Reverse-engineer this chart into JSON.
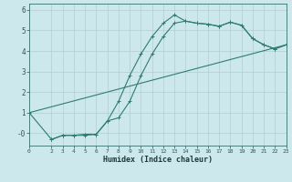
{
  "xlabel": "Humidex (Indice chaleur)",
  "bg_color": "#cce8ec",
  "grid_color": "#b0cdd0",
  "line_color": "#2d7d70",
  "xlim": [
    0,
    23
  ],
  "ylim": [
    -0.6,
    6.3
  ],
  "xticks": [
    0,
    2,
    3,
    4,
    5,
    6,
    7,
    8,
    9,
    10,
    11,
    12,
    13,
    14,
    15,
    16,
    17,
    18,
    19,
    20,
    21,
    22,
    23
  ],
  "yticks": [
    0,
    1,
    2,
    3,
    4,
    5,
    6
  ],
  "ytick_labels": [
    "-0",
    "1",
    "2",
    "3",
    "4",
    "5",
    "6"
  ],
  "line1_x": [
    0,
    23
  ],
  "line1_y": [
    1.0,
    4.3
  ],
  "line2_x": [
    0,
    23
  ],
  "line2_y": [
    1.0,
    4.3
  ],
  "curve1_x": [
    2,
    3,
    4,
    5,
    6,
    7,
    8,
    9,
    10,
    11,
    12,
    13,
    14,
    15,
    16,
    17,
    18,
    19,
    20,
    21,
    22,
    23
  ],
  "curve1_y": [
    -0.3,
    -0.1,
    -0.1,
    -0.1,
    -0.05,
    0.6,
    1.55,
    2.8,
    3.85,
    4.7,
    5.35,
    5.75,
    5.45,
    5.35,
    5.3,
    5.2,
    5.4,
    5.25,
    4.6,
    4.3,
    4.1,
    4.3
  ],
  "curve2_x": [
    0,
    2,
    3,
    4,
    5,
    6,
    7,
    8,
    9,
    10,
    11,
    12,
    13,
    14,
    15,
    16,
    17,
    18,
    19,
    20,
    21,
    22,
    23
  ],
  "curve2_y": [
    1.0,
    -0.3,
    -0.1,
    -0.1,
    -0.05,
    -0.05,
    0.6,
    0.75,
    1.55,
    2.8,
    3.85,
    4.7,
    5.35,
    5.45,
    5.35,
    5.3,
    5.2,
    5.4,
    5.25,
    4.6,
    4.3,
    4.1,
    4.3
  ]
}
